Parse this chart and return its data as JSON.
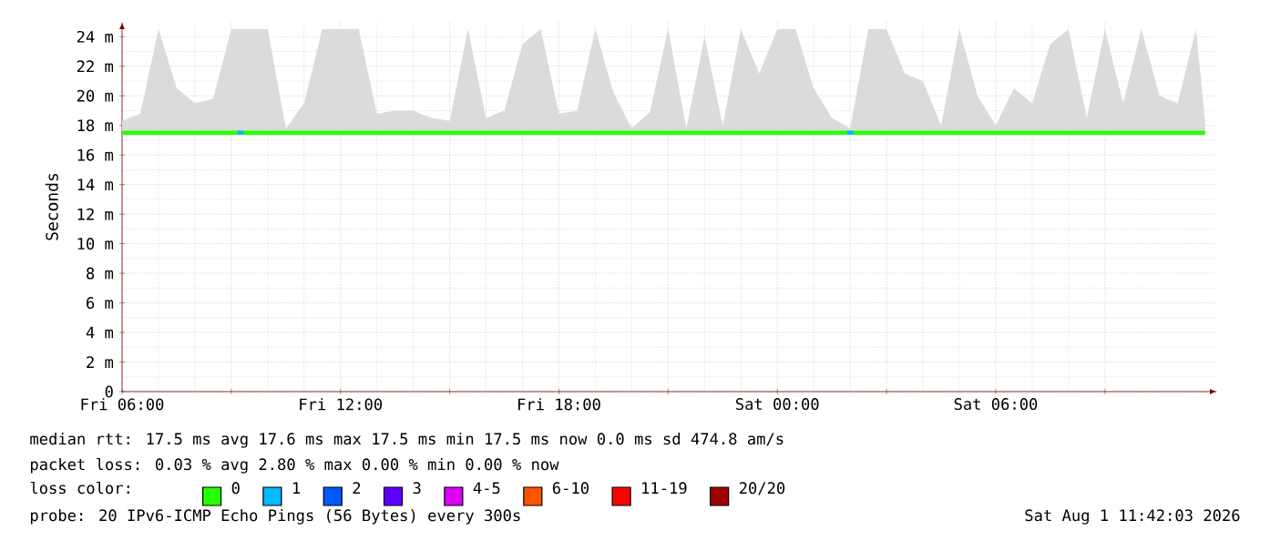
{
  "chart_data": {
    "type": "line",
    "ylabel": "Seconds",
    "xlim": [
      "2026-07-31T06:00",
      "2026-08-01T12:05"
    ],
    "xticks": [
      {
        "value": "2026-07-31T06:00",
        "label": "Fri 06:00"
      },
      {
        "value": "2026-07-31T09:00",
        "label": null
      },
      {
        "value": "2026-07-31T12:00",
        "label": "Fri 12:00"
      },
      {
        "value": "2026-07-31T15:00",
        "label": null
      },
      {
        "value": "2026-07-31T18:00",
        "label": "Fri 18:00"
      },
      {
        "value": "2026-07-31T21:00",
        "label": null
      },
      {
        "value": "2026-08-01T00:00",
        "label": "Sat 00:00"
      },
      {
        "value": "2026-08-01T03:00",
        "label": null
      },
      {
        "value": "2026-08-01T06:00",
        "label": "Sat 06:00"
      },
      {
        "value": "2026-08-01T09:00",
        "label": null
      }
    ],
    "ylim": [
      0,
      25
    ],
    "yticks": [
      {
        "value": 0,
        "label": "0"
      },
      {
        "value": 2,
        "label": "2 m"
      },
      {
        "value": 4,
        "label": "4 m"
      },
      {
        "value": 6,
        "label": "6 m"
      },
      {
        "value": 8,
        "label": "8 m"
      },
      {
        "value": 10,
        "label": "10 m"
      },
      {
        "value": 12,
        "label": "12 m"
      },
      {
        "value": 14,
        "label": "14 m"
      },
      {
        "value": 16,
        "label": "16 m"
      },
      {
        "value": 18,
        "label": "18 m"
      },
      {
        "value": 20,
        "label": "20 m"
      },
      {
        "value": 22,
        "label": "22 m"
      },
      {
        "value": 24,
        "label": "24 m"
      }
    ],
    "grid": true,
    "legend": "bottom",
    "legend_title": "loss color:",
    "series": [
      {
        "name": "0",
        "color": "#26ff00",
        "x": [
          "2026-07-31T06:00",
          "2026-07-31T06:30",
          "2026-07-31T07:00",
          "2026-07-31T07:30",
          "2026-07-31T08:00",
          "2026-07-31T08:30",
          "2026-07-31T09:00",
          "2026-07-31T09:30",
          "2026-07-31T10:00",
          "2026-07-31T10:30",
          "2026-07-31T11:00",
          "2026-07-31T11:30",
          "2026-07-31T12:00",
          "2026-07-31T12:30",
          "2026-07-31T13:00",
          "2026-07-31T13:30",
          "2026-07-31T14:00",
          "2026-07-31T14:30",
          "2026-07-31T15:00",
          "2026-07-31T15:30",
          "2026-07-31T16:00",
          "2026-07-31T16:30",
          "2026-07-31T17:00",
          "2026-07-31T17:30",
          "2026-07-31T18:00",
          "2026-07-31T18:30",
          "2026-07-31T19:00",
          "2026-07-31T19:30",
          "2026-07-31T20:00",
          "2026-07-31T20:30",
          "2026-07-31T21:00",
          "2026-07-31T21:30",
          "2026-07-31T22:00",
          "2026-07-31T22:30",
          "2026-07-31T23:00",
          "2026-07-31T23:30",
          "2026-08-01T00:00",
          "2026-08-01T00:30",
          "2026-08-01T01:00",
          "2026-08-01T01:30",
          "2026-08-01T02:00",
          "2026-08-01T02:30",
          "2026-08-01T03:00",
          "2026-08-01T03:30",
          "2026-08-01T04:00",
          "2026-08-01T04:30",
          "2026-08-01T05:00",
          "2026-08-01T05:30",
          "2026-08-01T06:00",
          "2026-08-01T06:30",
          "2026-08-01T07:00",
          "2026-08-01T07:30",
          "2026-08-01T08:00",
          "2026-08-01T08:30",
          "2026-08-01T09:00",
          "2026-08-01T09:30",
          "2026-08-01T10:00",
          "2026-08-01T10:30",
          "2026-08-01T11:00",
          "2026-08-01T11:30",
          "2026-08-01T11:45"
        ],
        "values": [
          17.5,
          17.5,
          17.5,
          17.5,
          17.5,
          17.5,
          17.5,
          17.5,
          17.5,
          17.5,
          17.5,
          17.5,
          17.5,
          17.5,
          17.5,
          17.5,
          17.5,
          17.5,
          17.5,
          17.5,
          17.5,
          17.5,
          17.5,
          17.5,
          17.5,
          17.5,
          17.5,
          17.5,
          17.5,
          17.5,
          17.5,
          17.5,
          17.5,
          17.5,
          17.5,
          17.5,
          17.5,
          17.5,
          17.5,
          17.5,
          17.5,
          17.5,
          17.5,
          17.5,
          17.5,
          17.5,
          17.5,
          17.5,
          17.5,
          17.5,
          17.5,
          17.5,
          17.5,
          17.5,
          17.5,
          17.5,
          17.5,
          17.5,
          17.5,
          17.5,
          17.5
        ],
        "lower": [
          17.5,
          17.5,
          17.5,
          17.5,
          17.5,
          17.5,
          17.5,
          17.5,
          17.5,
          17.5,
          17.5,
          17.5,
          17.5,
          17.5,
          17.5,
          17.5,
          17.5,
          17.5,
          17.5,
          17.5,
          17.5,
          17.5,
          17.5,
          17.5,
          17.5,
          17.5,
          17.5,
          17.5,
          17.5,
          17.5,
          17.5,
          17.5,
          17.5,
          17.5,
          17.5,
          17.5,
          17.5,
          17.5,
          17.5,
          17.5,
          17.5,
          17.5,
          17.5,
          17.5,
          17.5,
          17.5,
          17.5,
          17.5,
          17.5,
          17.5,
          17.5,
          17.5,
          17.5,
          17.5,
          17.5,
          17.5,
          17.5,
          17.5,
          17.5,
          17.5,
          17.5
        ],
        "upper": [
          18.3,
          18.8,
          24.5,
          20.5,
          19.5,
          19.8,
          24.5,
          24.5,
          24.5,
          17.8,
          19.5,
          24.5,
          24.5,
          24.5,
          18.8,
          19.0,
          19.0,
          18.5,
          18.3,
          24.5,
          18.5,
          19.0,
          23.5,
          24.5,
          18.8,
          19.0,
          24.5,
          20.2,
          17.8,
          18.9,
          24.5,
          17.8,
          24.0,
          18.0,
          24.5,
          21.5,
          24.5,
          24.5,
          20.5,
          18.5,
          17.8,
          24.5,
          24.5,
          21.5,
          21.0,
          18.0,
          24.5,
          20.0,
          18.0,
          20.5,
          19.5,
          23.5,
          24.5,
          18.5,
          24.5,
          19.5,
          24.5,
          20.0,
          19.5,
          24.5,
          18.3
        ]
      },
      {
        "name": "1",
        "color": "#00b8ff",
        "x": [
          "2026-07-31T09:10",
          "2026-07-31T09:20",
          "2026-07-31T09:25",
          "2026-08-01T01:55",
          "2026-08-01T02:05"
        ],
        "values": [
          17.5,
          17.5,
          null,
          17.5,
          17.5
        ]
      },
      {
        "name": "2",
        "color": "#0059ff"
      },
      {
        "name": "3",
        "color": "#5e00ff"
      },
      {
        "name": "4-5",
        "color": "#dd00ff"
      },
      {
        "name": "6-10",
        "color": "#ff5500"
      },
      {
        "name": "11-19",
        "color": "#ff0000"
      },
      {
        "name": "20/20",
        "color": "#a10000"
      }
    ],
    "annotations": [
      "median rtt:  17.5 ms avg  17.6 ms max  17.5 ms min  17.5 ms now  0.0 ms sd  474.8   am/s",
      "packet loss: 0.03 % avg  2.80 % max  0.00 % min  0.00 % now",
      "probe:       20 IPv6-ICMP Echo Pings (56 Bytes) every 300s",
      "Sat Aug  1 11:42:03 2026"
    ]
  }
}
